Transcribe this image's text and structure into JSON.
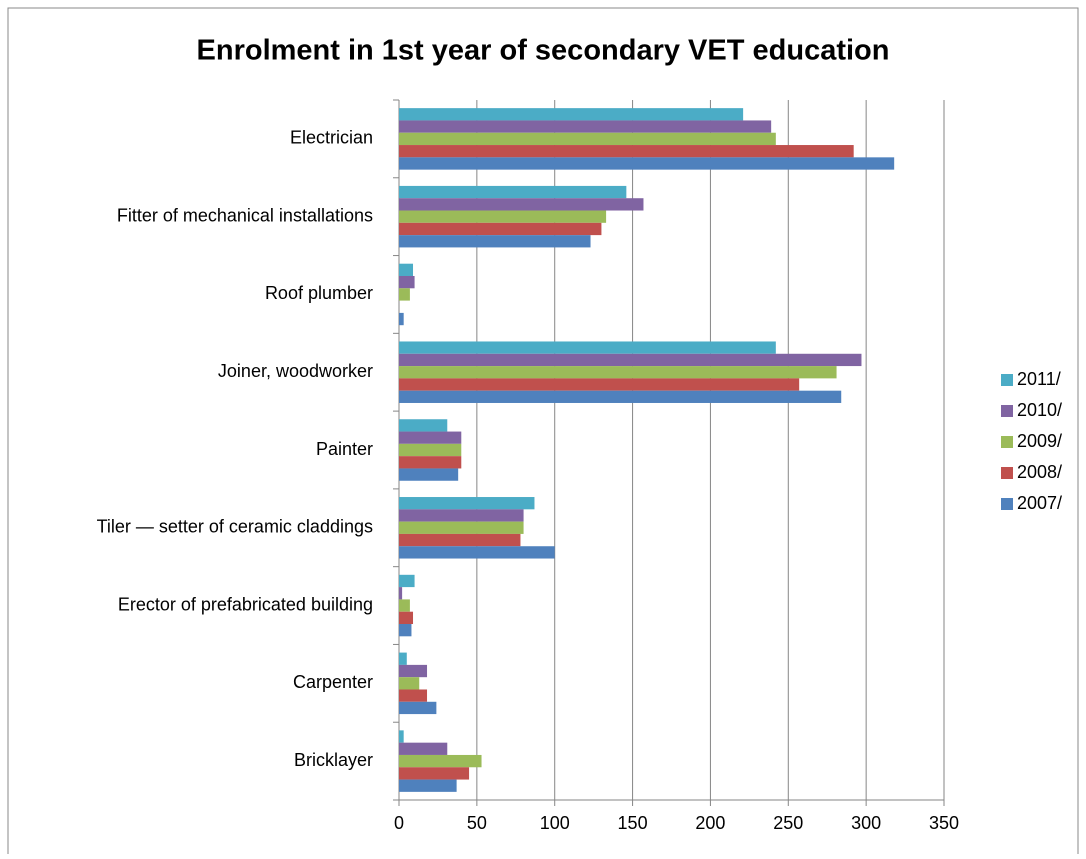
{
  "chart_data": {
    "type": "hbar",
    "title": "Enrolment in 1st year of secondary VET education",
    "categories": [
      "Electrician",
      "Fitter of mechanical installations",
      "Roof plumber",
      "Joiner, woodworker",
      "Painter",
      "Tiler — setter of ceramic claddings",
      "Erector of prefabricated building",
      "Carpenter",
      "Bricklayer"
    ],
    "series": [
      {
        "name": "2011/",
        "color": "#4bacc6",
        "values": [
          221,
          146,
          9,
          242,
          31,
          87,
          10,
          5,
          3
        ]
      },
      {
        "name": "2010/",
        "color": "#8064a2",
        "values": [
          239,
          157,
          10,
          297,
          40,
          80,
          2,
          18,
          31
        ]
      },
      {
        "name": "2009/",
        "color": "#9bbb59",
        "values": [
          242,
          133,
          7,
          281,
          40,
          80,
          7,
          13,
          53
        ]
      },
      {
        "name": "2008/",
        "color": "#c0504d",
        "values": [
          292,
          130,
          0,
          257,
          40,
          78,
          9,
          18,
          45
        ]
      },
      {
        "name": "2007/",
        "color": "#4f81bd",
        "values": [
          318,
          123,
          3,
          284,
          38,
          100,
          8,
          24,
          37
        ]
      }
    ],
    "xlim": [
      0,
      350
    ],
    "xticks": [
      0,
      50,
      100,
      150,
      200,
      250,
      300,
      350
    ],
    "grid": true,
    "legend": "right"
  }
}
